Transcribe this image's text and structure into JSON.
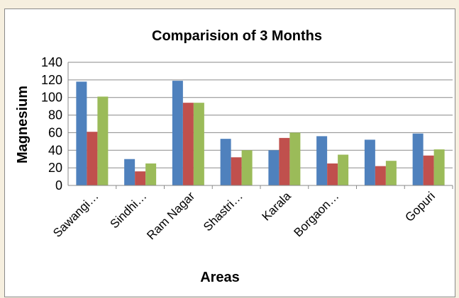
{
  "chart_data": {
    "type": "bar",
    "title": "Comparision of 3 Months",
    "xlabel": "Areas",
    "ylabel": "Magnesium",
    "ylim": [
      0,
      140
    ],
    "yticks": [
      0,
      20,
      40,
      60,
      80,
      100,
      120,
      140
    ],
    "grid": true,
    "legend": "none",
    "categories": [
      "Sawangi…",
      "Sindhi…",
      "Ram Nagar",
      "Shastri…",
      "Karala",
      "Borgaon…",
      "",
      "Gopuri"
    ],
    "series": [
      {
        "color": "#4f81bd",
        "values": [
          118,
          30,
          119,
          53,
          40,
          56,
          52,
          59
        ]
      },
      {
        "color": "#c0504d",
        "values": [
          61,
          16,
          94,
          32,
          54,
          25,
          22,
          34
        ]
      },
      {
        "color": "#9bbb59",
        "values": [
          101,
          25,
          94,
          40,
          60,
          35,
          28,
          41
        ]
      }
    ]
  }
}
